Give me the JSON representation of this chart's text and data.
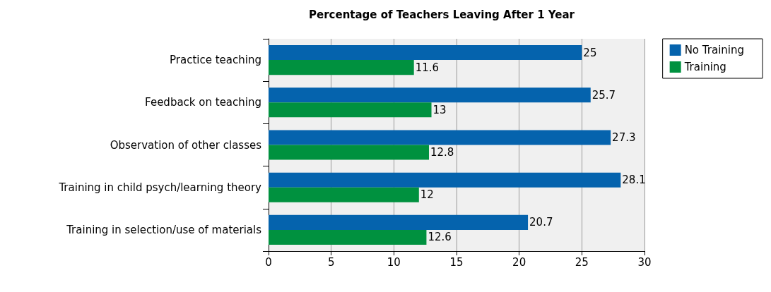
{
  "chart_data": {
    "type": "bar",
    "orientation": "horizontal",
    "title": "Percentage of Teachers Leaving After 1 Year",
    "categories": [
      "Practice teaching",
      "Feedback on teaching",
      "Observation of other classes",
      "Training in child psych/learning theory",
      "Training in selection/use of materials"
    ],
    "series": [
      {
        "name": "No Training",
        "color": "#0563ad",
        "values": [
          25,
          25.7,
          27.3,
          28.1,
          20.7
        ]
      },
      {
        "name": "Training",
        "color": "#00913f",
        "values": [
          11.6,
          13,
          12.8,
          12,
          12.6
        ]
      }
    ],
    "xlim": [
      0,
      30
    ],
    "xticks": [
      0,
      5,
      10,
      15,
      20,
      25,
      30
    ],
    "grid": "x",
    "legend": "top right",
    "data_labels": true
  }
}
